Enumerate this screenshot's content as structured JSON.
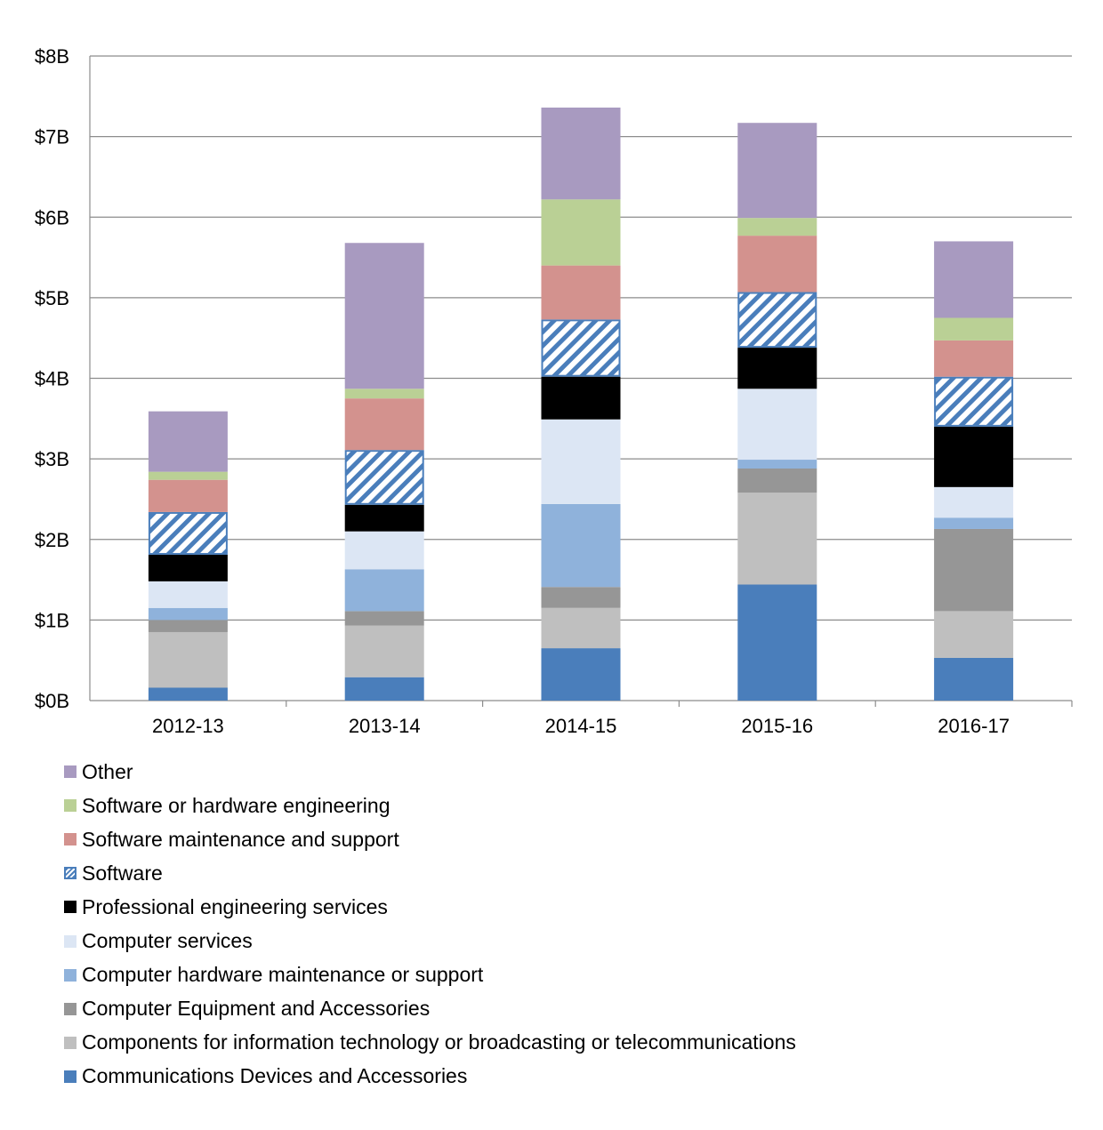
{
  "chart_data": {
    "type": "bar",
    "stacked": true,
    "title": "",
    "xlabel": "",
    "ylabel": "",
    "ylim": [
      0,
      8
    ],
    "yticks": [
      "$0B",
      "$1B",
      "$2B",
      "$3B",
      "$4B",
      "$5B",
      "$6B",
      "$7B",
      "$8B"
    ],
    "grid": true,
    "legend_position": "bottom",
    "categories": [
      "2012-13",
      "2013-14",
      "2014-15",
      "2015-16",
      "2016-17"
    ],
    "series": [
      {
        "name": "Communications Devices and Accessories",
        "color": "#4a7ebb",
        "pattern": "solid",
        "values": [
          0.16,
          0.29,
          0.65,
          1.44,
          0.53
        ]
      },
      {
        "name": "Components for information technology or broadcasting or telecommunications",
        "color": "#bfbfbf",
        "pattern": "solid",
        "values": [
          0.69,
          0.64,
          0.5,
          1.14,
          0.58
        ]
      },
      {
        "name": "Computer Equipment and Accessories",
        "color": "#969696",
        "pattern": "solid",
        "values": [
          0.15,
          0.18,
          0.26,
          0.3,
          1.02
        ]
      },
      {
        "name": "Computer hardware maintenance or support",
        "color": "#8fb2db",
        "pattern": "solid",
        "values": [
          0.15,
          0.52,
          1.03,
          0.11,
          0.14
        ]
      },
      {
        "name": "Computer services",
        "color": "#dce6f4",
        "pattern": "solid",
        "values": [
          0.33,
          0.47,
          1.05,
          0.88,
          0.38
        ]
      },
      {
        "name": "Professional engineering services",
        "color": "#000000",
        "pattern": "solid",
        "values": [
          0.33,
          0.33,
          0.53,
          0.51,
          0.75
        ]
      },
      {
        "name": "Software",
        "color": "#4a7ebb",
        "pattern": "hatched",
        "values": [
          0.53,
          0.68,
          0.71,
          0.69,
          0.62
        ]
      },
      {
        "name": "Software maintenance and support",
        "color": "#d3928e",
        "pattern": "solid",
        "values": [
          0.4,
          0.64,
          0.67,
          0.7,
          0.45
        ]
      },
      {
        "name": "Software or hardware engineering",
        "color": "#bad095",
        "pattern": "solid",
        "values": [
          0.1,
          0.12,
          0.82,
          0.22,
          0.28
        ]
      },
      {
        "name": "Other",
        "color": "#a89ac0",
        "pattern": "solid",
        "values": [
          0.75,
          1.81,
          1.14,
          1.18,
          0.95
        ]
      }
    ]
  }
}
